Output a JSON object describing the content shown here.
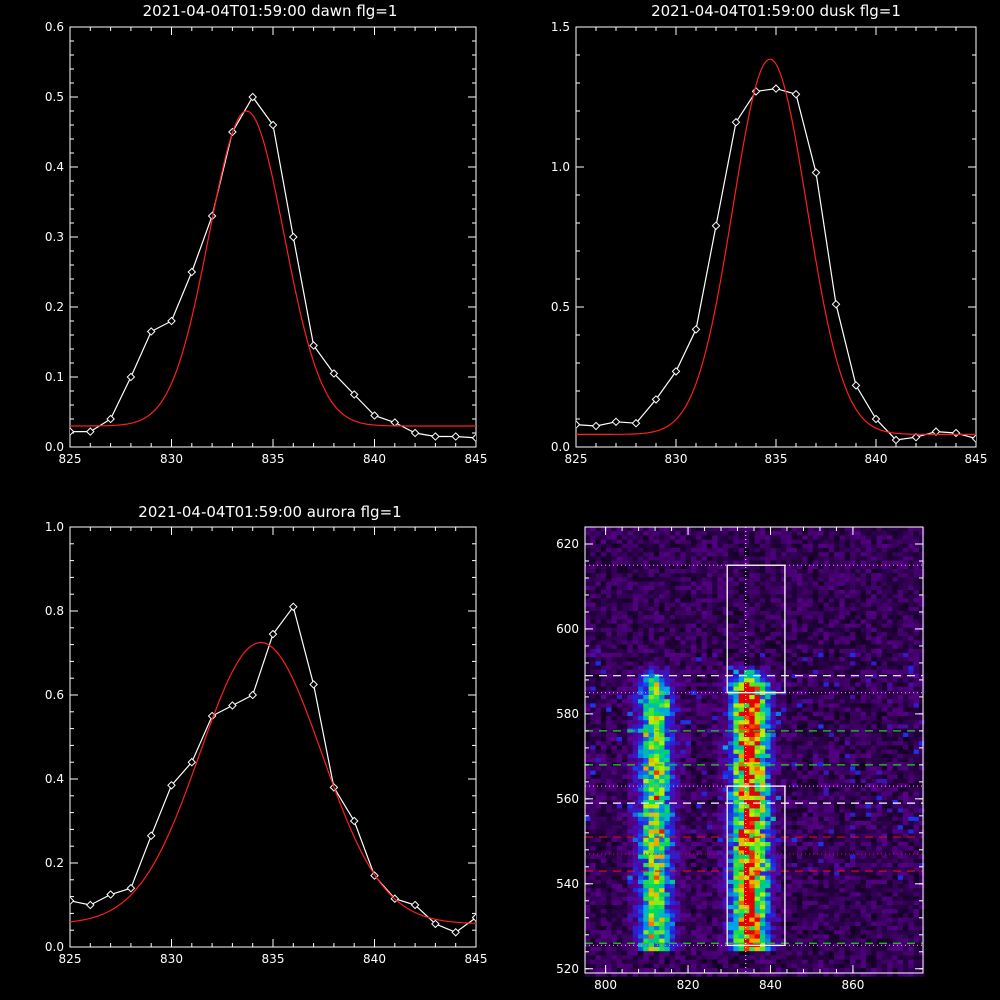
{
  "chart_data": [
    {
      "type": "line",
      "title": "2021-04-04T01:59:00 dawn flg=1",
      "xlim": [
        825,
        845
      ],
      "ylim": [
        0,
        0.6
      ],
      "xticks": [
        "825",
        "830",
        "835",
        "840",
        "845"
      ],
      "yticks": [
        "0.0",
        "0.1",
        "0.2",
        "0.3",
        "0.4",
        "0.5",
        "0.6"
      ],
      "series": [
        {
          "color": "#ffffff",
          "marker": "diamond",
          "x": [
            825,
            826,
            827,
            828,
            829,
            830,
            831,
            832,
            833,
            834,
            835,
            836,
            837,
            838,
            839,
            840,
            841,
            842,
            843,
            844,
            845
          ],
          "y": [
            0.022,
            0.022,
            0.04,
            0.1,
            0.165,
            0.18,
            0.25,
            0.33,
            0.45,
            0.5,
            0.46,
            0.3,
            0.145,
            0.105,
            0.075,
            0.045,
            0.035,
            0.02,
            0.015,
            0.015,
            0.013
          ]
        },
        {
          "color": "#ff1e1e",
          "curve": "gaussian",
          "params": {
            "amp": 0.45,
            "center": 833.7,
            "sigma": 1.85,
            "baseline": 0.03
          }
        }
      ]
    },
    {
      "type": "line",
      "title": "2021-04-04T01:59:00 dusk flg=1",
      "xlim": [
        825,
        845
      ],
      "ylim": [
        0,
        1.5
      ],
      "xticks": [
        "825",
        "830",
        "835",
        "840",
        "845"
      ],
      "yticks": [
        "0.0",
        "0.5",
        "1.0",
        "1.5"
      ],
      "series": [
        {
          "color": "#ffffff",
          "marker": "diamond",
          "x": [
            825,
            826,
            827,
            828,
            829,
            830,
            831,
            832,
            833,
            834,
            835,
            836,
            837,
            838,
            839,
            840,
            841,
            842,
            843,
            844,
            845
          ],
          "y": [
            0.08,
            0.075,
            0.09,
            0.085,
            0.17,
            0.27,
            0.42,
            0.79,
            1.16,
            1.27,
            1.28,
            1.26,
            0.98,
            0.51,
            0.22,
            0.1,
            0.025,
            0.035,
            0.055,
            0.05,
            0.03
          ]
        },
        {
          "color": "#ff1e1e",
          "curve": "gaussian",
          "params": {
            "amp": 1.34,
            "center": 834.7,
            "sigma": 1.85,
            "baseline": 0.045
          }
        }
      ]
    },
    {
      "type": "line",
      "title": "2021-04-04T01:59:00 aurora flg=1",
      "xlim": [
        825,
        845
      ],
      "ylim": [
        0,
        1.0
      ],
      "xticks": [
        "825",
        "830",
        "835",
        "840",
        "845"
      ],
      "yticks": [
        "0.0",
        "0.2",
        "0.4",
        "0.6",
        "0.8",
        "1.0"
      ],
      "series": [
        {
          "color": "#ffffff",
          "marker": "diamond",
          "x": [
            825,
            826,
            827,
            828,
            829,
            830,
            831,
            832,
            833,
            834,
            835,
            836,
            837,
            838,
            839,
            840,
            841,
            842,
            843,
            844,
            845
          ],
          "y": [
            0.11,
            0.1,
            0.125,
            0.14,
            0.265,
            0.385,
            0.44,
            0.55,
            0.575,
            0.6,
            0.745,
            0.81,
            0.625,
            0.38,
            0.3,
            0.17,
            0.115,
            0.1,
            0.055,
            0.035,
            0.07
          ]
        },
        {
          "color": "#ff1e1e",
          "curve": "gaussian",
          "params": {
            "amp": 0.67,
            "center": 834.4,
            "sigma": 3.0,
            "baseline": 0.055
          }
        }
      ]
    },
    {
      "type": "heatmap",
      "xlim": [
        795,
        877
      ],
      "ylim": [
        519,
        624
      ],
      "xticks": [
        "800",
        "820",
        "840",
        "860"
      ],
      "yticks": [
        "520",
        "540",
        "560",
        "580",
        "600",
        "620"
      ],
      "colormap": "rainbow (black-purple-blue-green-yellow-red)",
      "bands": [
        {
          "x_center": 812,
          "width": 3,
          "y_range": [
            524,
            586
          ],
          "peak": 0.65
        },
        {
          "x_center": 835,
          "width": 3,
          "y_range": [
            524,
            586
          ],
          "peak": 1.0
        }
      ],
      "boxes": [
        {
          "x": [
            829.5,
            843.5
          ],
          "y": [
            585,
            615
          ],
          "color": "#ffffff"
        },
        {
          "x": [
            829.5,
            843.5
          ],
          "y": [
            525.5,
            563
          ],
          "color": "#ffffff"
        }
      ],
      "vlines": [
        {
          "x": 834,
          "color": "#ffffff",
          "style": "dotted"
        }
      ],
      "hlines": [
        {
          "y": 615,
          "color": "#ff66ff",
          "style": "dotted"
        },
        {
          "y": 589,
          "color": "#ffffff",
          "style": "dashed"
        },
        {
          "y": 585,
          "color": "#ff66ff",
          "style": "dotted"
        },
        {
          "y": 576,
          "color": "#22cc22",
          "style": "dashed"
        },
        {
          "y": 568,
          "color": "#22cc22",
          "style": "dashed"
        },
        {
          "y": 563,
          "color": "#ff66ff",
          "style": "dotted"
        },
        {
          "y": 559,
          "color": "#ffffff",
          "style": "dashed"
        },
        {
          "y": 551,
          "color": "#cc1111",
          "style": "dashed"
        },
        {
          "y": 547,
          "color": "#aa2222",
          "style": "dotted"
        },
        {
          "y": 543,
          "color": "#dd1111",
          "style": "dashed"
        },
        {
          "y": 526,
          "color": "#22cc22",
          "style": "dashed"
        },
        {
          "y": 525.5,
          "color": "#ff66ff",
          "style": "dotted"
        }
      ]
    }
  ]
}
